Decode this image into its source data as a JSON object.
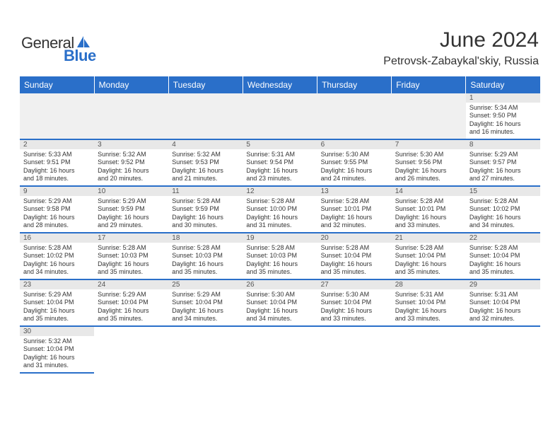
{
  "logo": {
    "text1": "General",
    "text2": "Blue"
  },
  "header": {
    "title": "June 2024",
    "location": "Petrovsk-Zabaykal'skiy, Russia"
  },
  "colors": {
    "accent": "#2a6fc9",
    "bg_alt": "#e8e8e8"
  },
  "days": [
    "Sunday",
    "Monday",
    "Tuesday",
    "Wednesday",
    "Thursday",
    "Friday",
    "Saturday"
  ],
  "weeks": [
    [
      null,
      null,
      null,
      null,
      null,
      null,
      {
        "n": "1",
        "sr": "Sunrise: 5:34 AM",
        "ss": "Sunset: 9:50 PM",
        "d1": "Daylight: 16 hours",
        "d2": "and 16 minutes."
      }
    ],
    [
      {
        "n": "2",
        "sr": "Sunrise: 5:33 AM",
        "ss": "Sunset: 9:51 PM",
        "d1": "Daylight: 16 hours",
        "d2": "and 18 minutes."
      },
      {
        "n": "3",
        "sr": "Sunrise: 5:32 AM",
        "ss": "Sunset: 9:52 PM",
        "d1": "Daylight: 16 hours",
        "d2": "and 20 minutes."
      },
      {
        "n": "4",
        "sr": "Sunrise: 5:32 AM",
        "ss": "Sunset: 9:53 PM",
        "d1": "Daylight: 16 hours",
        "d2": "and 21 minutes."
      },
      {
        "n": "5",
        "sr": "Sunrise: 5:31 AM",
        "ss": "Sunset: 9:54 PM",
        "d1": "Daylight: 16 hours",
        "d2": "and 23 minutes."
      },
      {
        "n": "6",
        "sr": "Sunrise: 5:30 AM",
        "ss": "Sunset: 9:55 PM",
        "d1": "Daylight: 16 hours",
        "d2": "and 24 minutes."
      },
      {
        "n": "7",
        "sr": "Sunrise: 5:30 AM",
        "ss": "Sunset: 9:56 PM",
        "d1": "Daylight: 16 hours",
        "d2": "and 26 minutes."
      },
      {
        "n": "8",
        "sr": "Sunrise: 5:29 AM",
        "ss": "Sunset: 9:57 PM",
        "d1": "Daylight: 16 hours",
        "d2": "and 27 minutes."
      }
    ],
    [
      {
        "n": "9",
        "sr": "Sunrise: 5:29 AM",
        "ss": "Sunset: 9:58 PM",
        "d1": "Daylight: 16 hours",
        "d2": "and 28 minutes."
      },
      {
        "n": "10",
        "sr": "Sunrise: 5:29 AM",
        "ss": "Sunset: 9:59 PM",
        "d1": "Daylight: 16 hours",
        "d2": "and 29 minutes."
      },
      {
        "n": "11",
        "sr": "Sunrise: 5:28 AM",
        "ss": "Sunset: 9:59 PM",
        "d1": "Daylight: 16 hours",
        "d2": "and 30 minutes."
      },
      {
        "n": "12",
        "sr": "Sunrise: 5:28 AM",
        "ss": "Sunset: 10:00 PM",
        "d1": "Daylight: 16 hours",
        "d2": "and 31 minutes."
      },
      {
        "n": "13",
        "sr": "Sunrise: 5:28 AM",
        "ss": "Sunset: 10:01 PM",
        "d1": "Daylight: 16 hours",
        "d2": "and 32 minutes."
      },
      {
        "n": "14",
        "sr": "Sunrise: 5:28 AM",
        "ss": "Sunset: 10:01 PM",
        "d1": "Daylight: 16 hours",
        "d2": "and 33 minutes."
      },
      {
        "n": "15",
        "sr": "Sunrise: 5:28 AM",
        "ss": "Sunset: 10:02 PM",
        "d1": "Daylight: 16 hours",
        "d2": "and 34 minutes."
      }
    ],
    [
      {
        "n": "16",
        "sr": "Sunrise: 5:28 AM",
        "ss": "Sunset: 10:02 PM",
        "d1": "Daylight: 16 hours",
        "d2": "and 34 minutes."
      },
      {
        "n": "17",
        "sr": "Sunrise: 5:28 AM",
        "ss": "Sunset: 10:03 PM",
        "d1": "Daylight: 16 hours",
        "d2": "and 35 minutes."
      },
      {
        "n": "18",
        "sr": "Sunrise: 5:28 AM",
        "ss": "Sunset: 10:03 PM",
        "d1": "Daylight: 16 hours",
        "d2": "and 35 minutes."
      },
      {
        "n": "19",
        "sr": "Sunrise: 5:28 AM",
        "ss": "Sunset: 10:03 PM",
        "d1": "Daylight: 16 hours",
        "d2": "and 35 minutes."
      },
      {
        "n": "20",
        "sr": "Sunrise: 5:28 AM",
        "ss": "Sunset: 10:04 PM",
        "d1": "Daylight: 16 hours",
        "d2": "and 35 minutes."
      },
      {
        "n": "21",
        "sr": "Sunrise: 5:28 AM",
        "ss": "Sunset: 10:04 PM",
        "d1": "Daylight: 16 hours",
        "d2": "and 35 minutes."
      },
      {
        "n": "22",
        "sr": "Sunrise: 5:28 AM",
        "ss": "Sunset: 10:04 PM",
        "d1": "Daylight: 16 hours",
        "d2": "and 35 minutes."
      }
    ],
    [
      {
        "n": "23",
        "sr": "Sunrise: 5:29 AM",
        "ss": "Sunset: 10:04 PM",
        "d1": "Daylight: 16 hours",
        "d2": "and 35 minutes."
      },
      {
        "n": "24",
        "sr": "Sunrise: 5:29 AM",
        "ss": "Sunset: 10:04 PM",
        "d1": "Daylight: 16 hours",
        "d2": "and 35 minutes."
      },
      {
        "n": "25",
        "sr": "Sunrise: 5:29 AM",
        "ss": "Sunset: 10:04 PM",
        "d1": "Daylight: 16 hours",
        "d2": "and 34 minutes."
      },
      {
        "n": "26",
        "sr": "Sunrise: 5:30 AM",
        "ss": "Sunset: 10:04 PM",
        "d1": "Daylight: 16 hours",
        "d2": "and 34 minutes."
      },
      {
        "n": "27",
        "sr": "Sunrise: 5:30 AM",
        "ss": "Sunset: 10:04 PM",
        "d1": "Daylight: 16 hours",
        "d2": "and 33 minutes."
      },
      {
        "n": "28",
        "sr": "Sunrise: 5:31 AM",
        "ss": "Sunset: 10:04 PM",
        "d1": "Daylight: 16 hours",
        "d2": "and 33 minutes."
      },
      {
        "n": "29",
        "sr": "Sunrise: 5:31 AM",
        "ss": "Sunset: 10:04 PM",
        "d1": "Daylight: 16 hours",
        "d2": "and 32 minutes."
      }
    ],
    [
      {
        "n": "30",
        "sr": "Sunrise: 5:32 AM",
        "ss": "Sunset: 10:04 PM",
        "d1": "Daylight: 16 hours",
        "d2": "and 31 minutes."
      },
      null,
      null,
      null,
      null,
      null,
      null
    ]
  ]
}
